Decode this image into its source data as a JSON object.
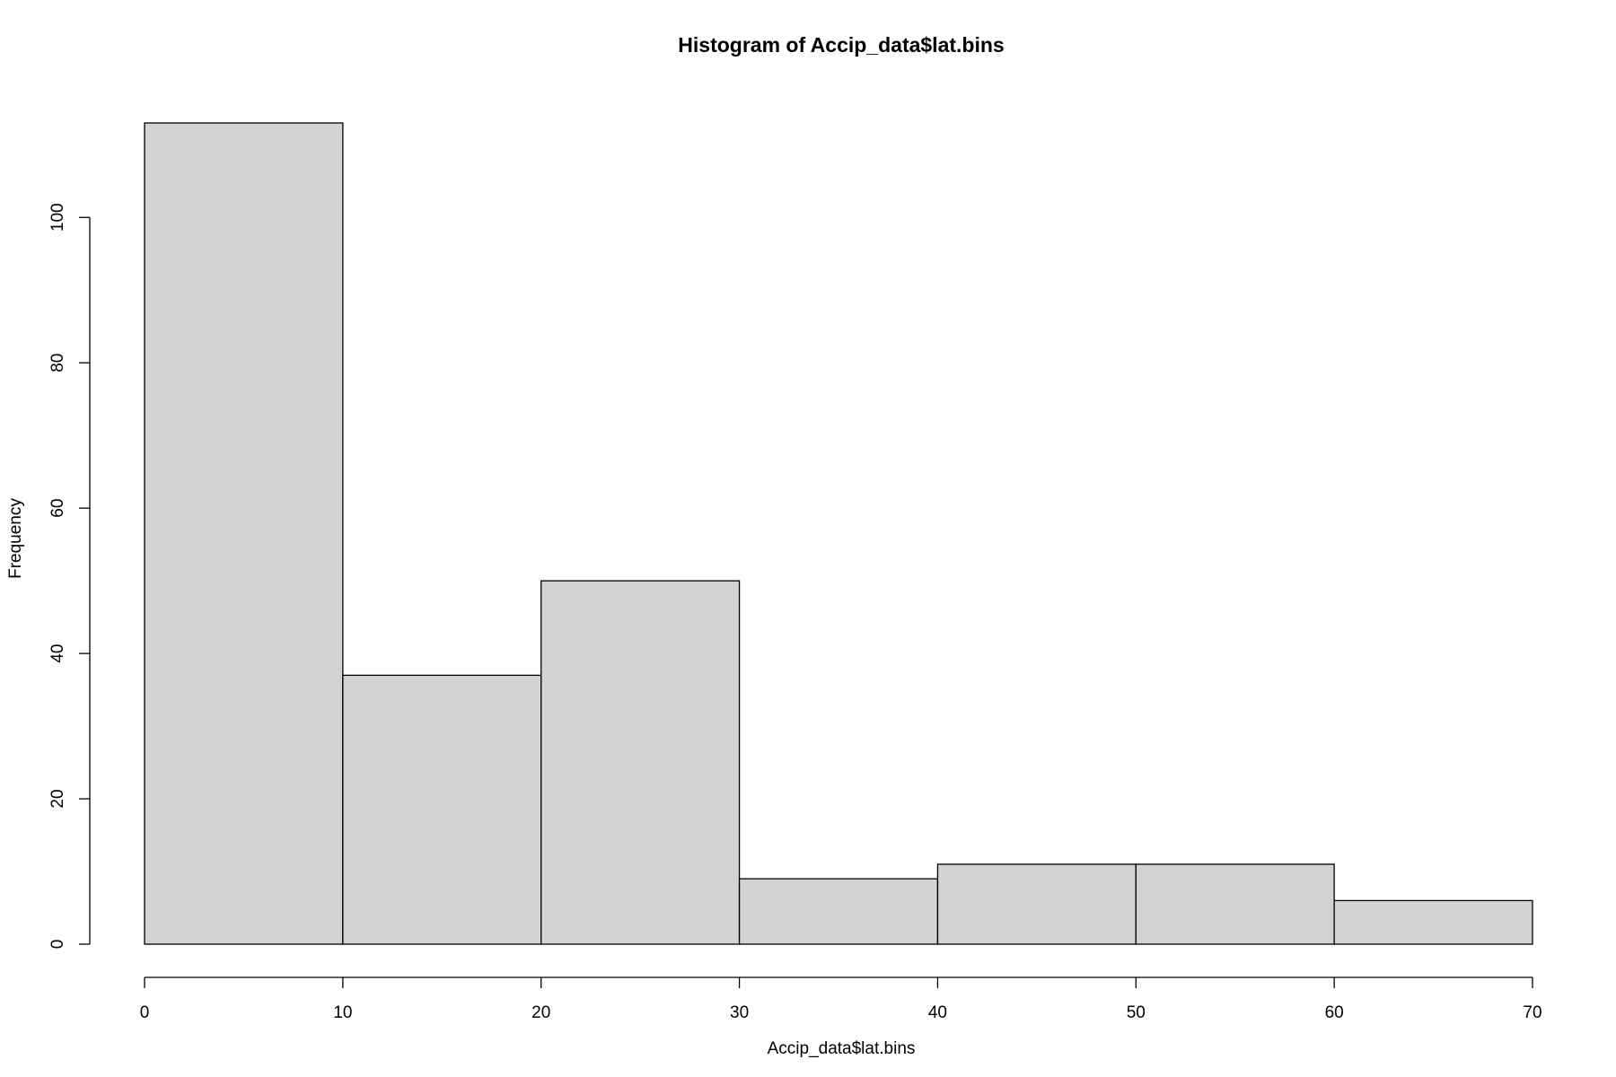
{
  "chart_data": {
    "type": "bar",
    "title": "Histogram of Accip_data$lat.bins",
    "xlabel": "Accip_data$lat.bins",
    "ylabel": "Frequency",
    "bins": [
      {
        "start": 0,
        "end": 10,
        "count": 113
      },
      {
        "start": 10,
        "end": 20,
        "count": 37
      },
      {
        "start": 20,
        "end": 30,
        "count": 50
      },
      {
        "start": 30,
        "end": 40,
        "count": 9
      },
      {
        "start": 40,
        "end": 50,
        "count": 11
      },
      {
        "start": 50,
        "end": 60,
        "count": 11
      },
      {
        "start": 60,
        "end": 70,
        "count": 6
      }
    ],
    "xlim": [
      0,
      70
    ],
    "ylim": [
      0,
      113
    ],
    "x_ticks": [
      "0",
      "10",
      "20",
      "30",
      "40",
      "50",
      "60",
      "70"
    ],
    "y_ticks": [
      "0",
      "20",
      "40",
      "60",
      "80",
      "100"
    ],
    "grid": false,
    "legend": "none",
    "colors": {
      "bar_fill": "#d3d3d3",
      "bar_stroke": "#000000",
      "axis": "#000000",
      "background": "#ffffff"
    }
  }
}
